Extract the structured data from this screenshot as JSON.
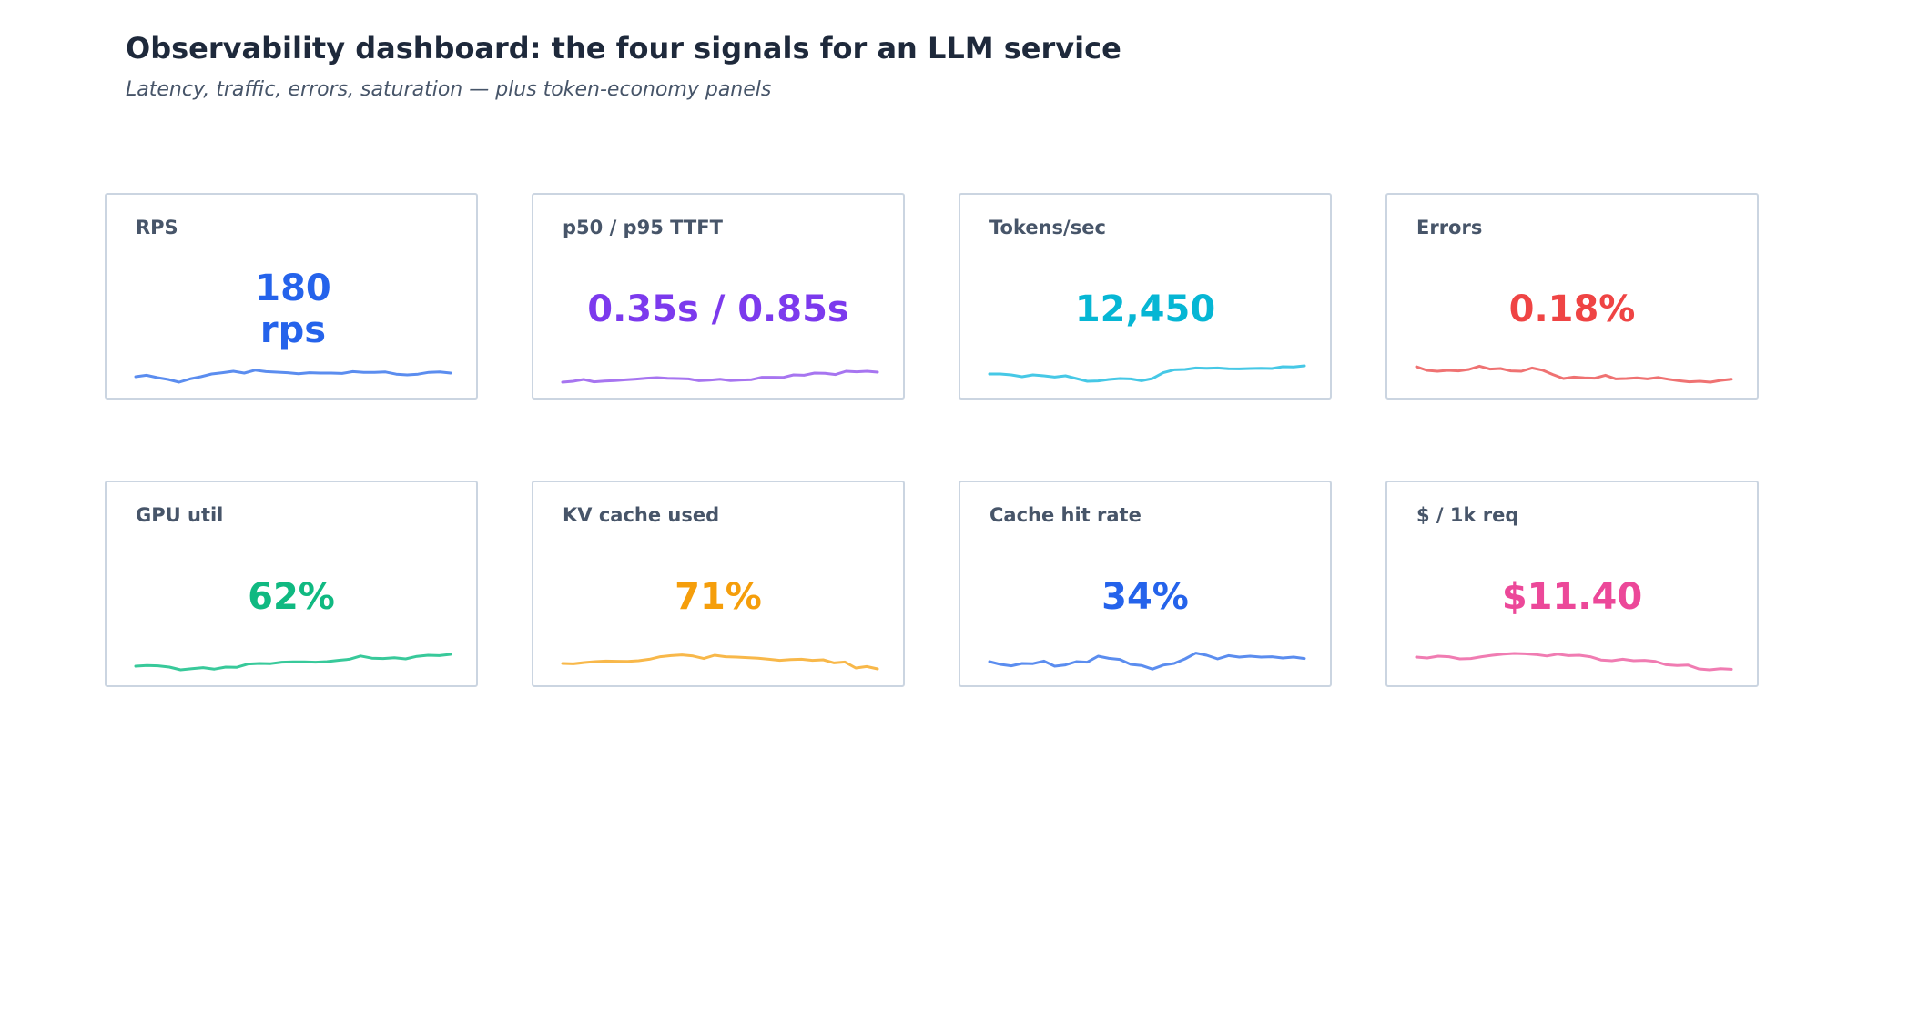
{
  "header": {
    "title": "Observability dashboard: the four signals for an LLM service",
    "subtitle": "Latency, traffic, errors, saturation — plus token-economy panels"
  },
  "panels": [
    {
      "label": "RPS",
      "value": "180 rps",
      "color": "#2563eb",
      "line_color": "#5b8def",
      "icon": "sparkline-icon",
      "trend": [
        0.3,
        0.38,
        0.25,
        0.15,
        0.0,
        0.18,
        0.3,
        0.45,
        0.52,
        0.6,
        0.5,
        0.66,
        0.58,
        0.55,
        0.52,
        0.46,
        0.52,
        0.5,
        0.5,
        0.48,
        0.58,
        0.54,
        0.54,
        0.56,
        0.44,
        0.4,
        0.44,
        0.54,
        0.56,
        0.5
      ]
    },
    {
      "label": "p50 / p95 TTFT",
      "value": "0.35s / 0.85s",
      "color": "#7c3aed",
      "line_color": "#a775f0",
      "icon": "sparkline-icon",
      "trend": [
        0.0,
        0.05,
        0.15,
        0.02,
        0.06,
        0.09,
        0.13,
        0.17,
        0.22,
        0.25,
        0.21,
        0.2,
        0.18,
        0.08,
        0.11,
        0.16,
        0.09,
        0.12,
        0.14,
        0.27,
        0.27,
        0.26,
        0.4,
        0.38,
        0.5,
        0.49,
        0.42,
        0.6,
        0.57,
        0.6,
        0.55
      ]
    },
    {
      "label": "Tokens/sec",
      "value": "12,450",
      "color": "#06b6d4",
      "line_color": "#46c8e6",
      "icon": "sparkline-icon",
      "trend": [
        0.45,
        0.45,
        0.4,
        0.3,
        0.4,
        0.35,
        0.28,
        0.35,
        0.2,
        0.05,
        0.07,
        0.15,
        0.2,
        0.18,
        0.08,
        0.2,
        0.52,
        0.68,
        0.7,
        0.78,
        0.76,
        0.78,
        0.74,
        0.73,
        0.75,
        0.76,
        0.75,
        0.85,
        0.84,
        0.9
      ]
    },
    {
      "label": "Errors",
      "value": "0.18%",
      "color": "#ef4444",
      "line_color": "#ef7272",
      "icon": "sparkline-icon",
      "trend": [
        0.85,
        0.65,
        0.6,
        0.65,
        0.62,
        0.7,
        0.88,
        0.72,
        0.75,
        0.62,
        0.6,
        0.78,
        0.66,
        0.42,
        0.2,
        0.28,
        0.24,
        0.22,
        0.38,
        0.18,
        0.2,
        0.24,
        0.18,
        0.26,
        0.16,
        0.08,
        0.02,
        0.05,
        0.0,
        0.1,
        0.16
      ]
    },
    {
      "label": "GPU util",
      "value": "62%",
      "color": "#10b981",
      "line_color": "#38c99a",
      "icon": "sparkline-icon",
      "trend": [
        0.2,
        0.24,
        0.22,
        0.15,
        0.0,
        0.06,
        0.12,
        0.04,
        0.15,
        0.14,
        0.32,
        0.35,
        0.34,
        0.42,
        0.44,
        0.44,
        0.42,
        0.45,
        0.52,
        0.58,
        0.76,
        0.64,
        0.62,
        0.66,
        0.6,
        0.74,
        0.8,
        0.78,
        0.85
      ]
    },
    {
      "label": "KV cache used",
      "value": "71%",
      "color": "#f59e0b",
      "line_color": "#f8b84a",
      "icon": "sparkline-icon",
      "trend": [
        0.35,
        0.33,
        0.4,
        0.45,
        0.48,
        0.47,
        0.46,
        0.5,
        0.58,
        0.72,
        0.78,
        0.82,
        0.76,
        0.62,
        0.8,
        0.72,
        0.7,
        0.67,
        0.64,
        0.58,
        0.52,
        0.56,
        0.58,
        0.52,
        0.55,
        0.38,
        0.43,
        0.1,
        0.18,
        0.05
      ]
    },
    {
      "label": "Cache hit rate",
      "value": "34%",
      "color": "#2563eb",
      "line_color": "#5b8def",
      "icon": "sparkline-icon",
      "trend": [
        0.45,
        0.3,
        0.22,
        0.35,
        0.34,
        0.48,
        0.2,
        0.27,
        0.45,
        0.42,
        0.75,
        0.63,
        0.57,
        0.3,
        0.24,
        0.04,
        0.26,
        0.35,
        0.6,
        0.92,
        0.8,
        0.6,
        0.78,
        0.7,
        0.75,
        0.7,
        0.72,
        0.65,
        0.7,
        0.62
      ]
    },
    {
      "label": "$ / 1k req",
      "value": "$11.40",
      "color": "#ec4899",
      "line_color": "#f07cb2",
      "icon": "sparkline-icon",
      "trend": [
        0.7,
        0.65,
        0.75,
        0.72,
        0.6,
        0.62,
        0.72,
        0.8,
        0.86,
        0.9,
        0.88,
        0.84,
        0.76,
        0.86,
        0.78,
        0.8,
        0.72,
        0.54,
        0.5,
        0.58,
        0.5,
        0.52,
        0.46,
        0.28,
        0.24,
        0.26,
        0.05,
        0.0,
        0.06,
        0.03
      ]
    }
  ]
}
